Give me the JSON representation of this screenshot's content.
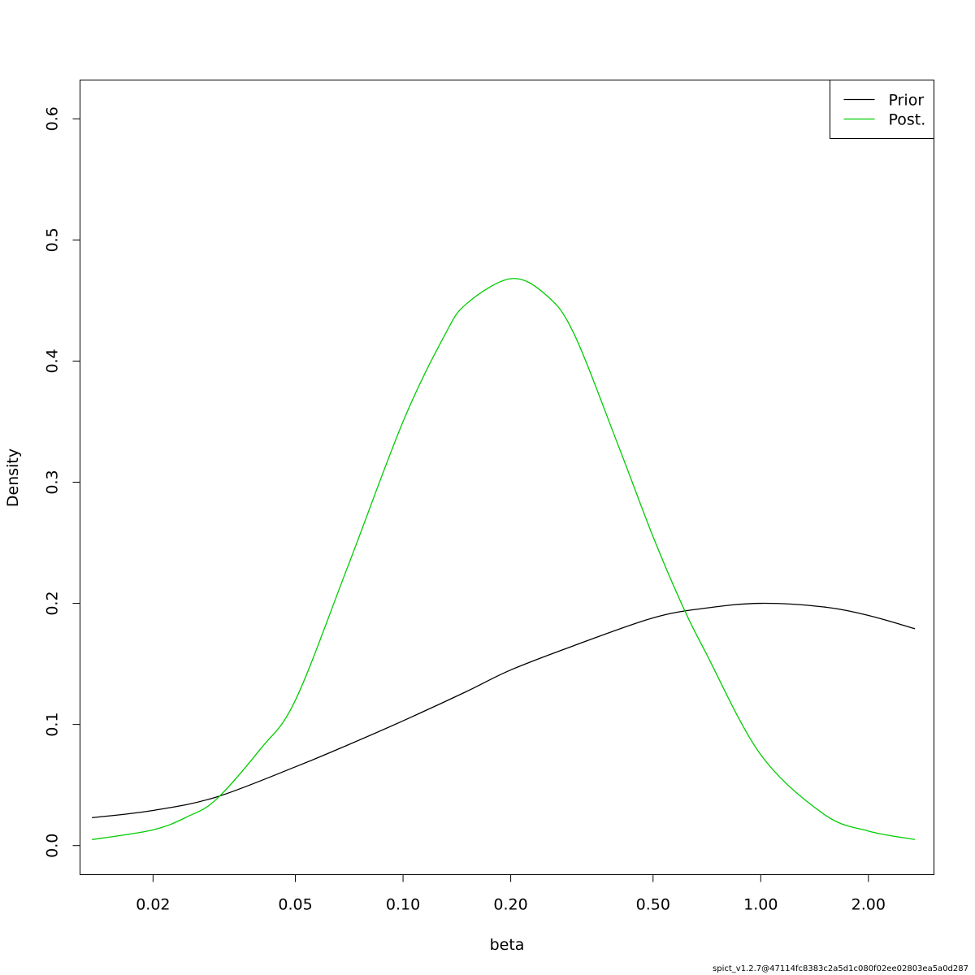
{
  "chart_data": {
    "type": "line",
    "title": "",
    "xlabel": "beta",
    "ylabel": "Density",
    "x_scale": "log",
    "xlim": [
      0.0125,
      3.05
    ],
    "ylim": [
      -0.024,
      0.632
    ],
    "x_ticks": [
      0.02,
      0.05,
      0.1,
      0.2,
      0.5,
      1.0,
      2.0
    ],
    "x_tick_labels": [
      "0.02",
      "0.05",
      "0.10",
      "0.20",
      "0.50",
      "1.00",
      "2.00"
    ],
    "y_ticks": [
      0.0,
      0.1,
      0.2,
      0.3,
      0.4,
      0.5,
      0.6
    ],
    "y_tick_labels": [
      "0.0",
      "0.1",
      "0.2",
      "0.3",
      "0.4",
      "0.5",
      "0.6"
    ],
    "grid": false,
    "legend_position": "top-right",
    "series": [
      {
        "name": "Prior",
        "color": "#000000",
        "x": [
          0.0135,
          0.02,
          0.03,
          0.05,
          0.07,
          0.1,
          0.15,
          0.2,
          0.3,
          0.5,
          0.7,
          1.0,
          1.5,
          2.0,
          2.7
        ],
        "y": [
          0.023,
          0.029,
          0.04,
          0.065,
          0.083,
          0.103,
          0.127,
          0.145,
          0.165,
          0.188,
          0.196,
          0.2,
          0.197,
          0.19,
          0.179
        ]
      },
      {
        "name": "Post.",
        "color": "#00cd00",
        "x": [
          0.0135,
          0.02,
          0.025,
          0.03,
          0.04,
          0.05,
          0.07,
          0.1,
          0.13,
          0.15,
          0.2,
          0.25,
          0.3,
          0.4,
          0.5,
          0.6,
          0.7,
          1.0,
          1.5,
          2.0,
          2.7
        ],
        "y": [
          0.005,
          0.013,
          0.024,
          0.038,
          0.08,
          0.12,
          0.23,
          0.35,
          0.42,
          0.447,
          0.468,
          0.455,
          0.423,
          0.33,
          0.255,
          0.2,
          0.16,
          0.075,
          0.026,
          0.012,
          0.005
        ]
      }
    ]
  },
  "footer": {
    "text": "spict_v1.2.7@47114fc8383c2a5d1c080f02ee02803ea5a0d287"
  }
}
